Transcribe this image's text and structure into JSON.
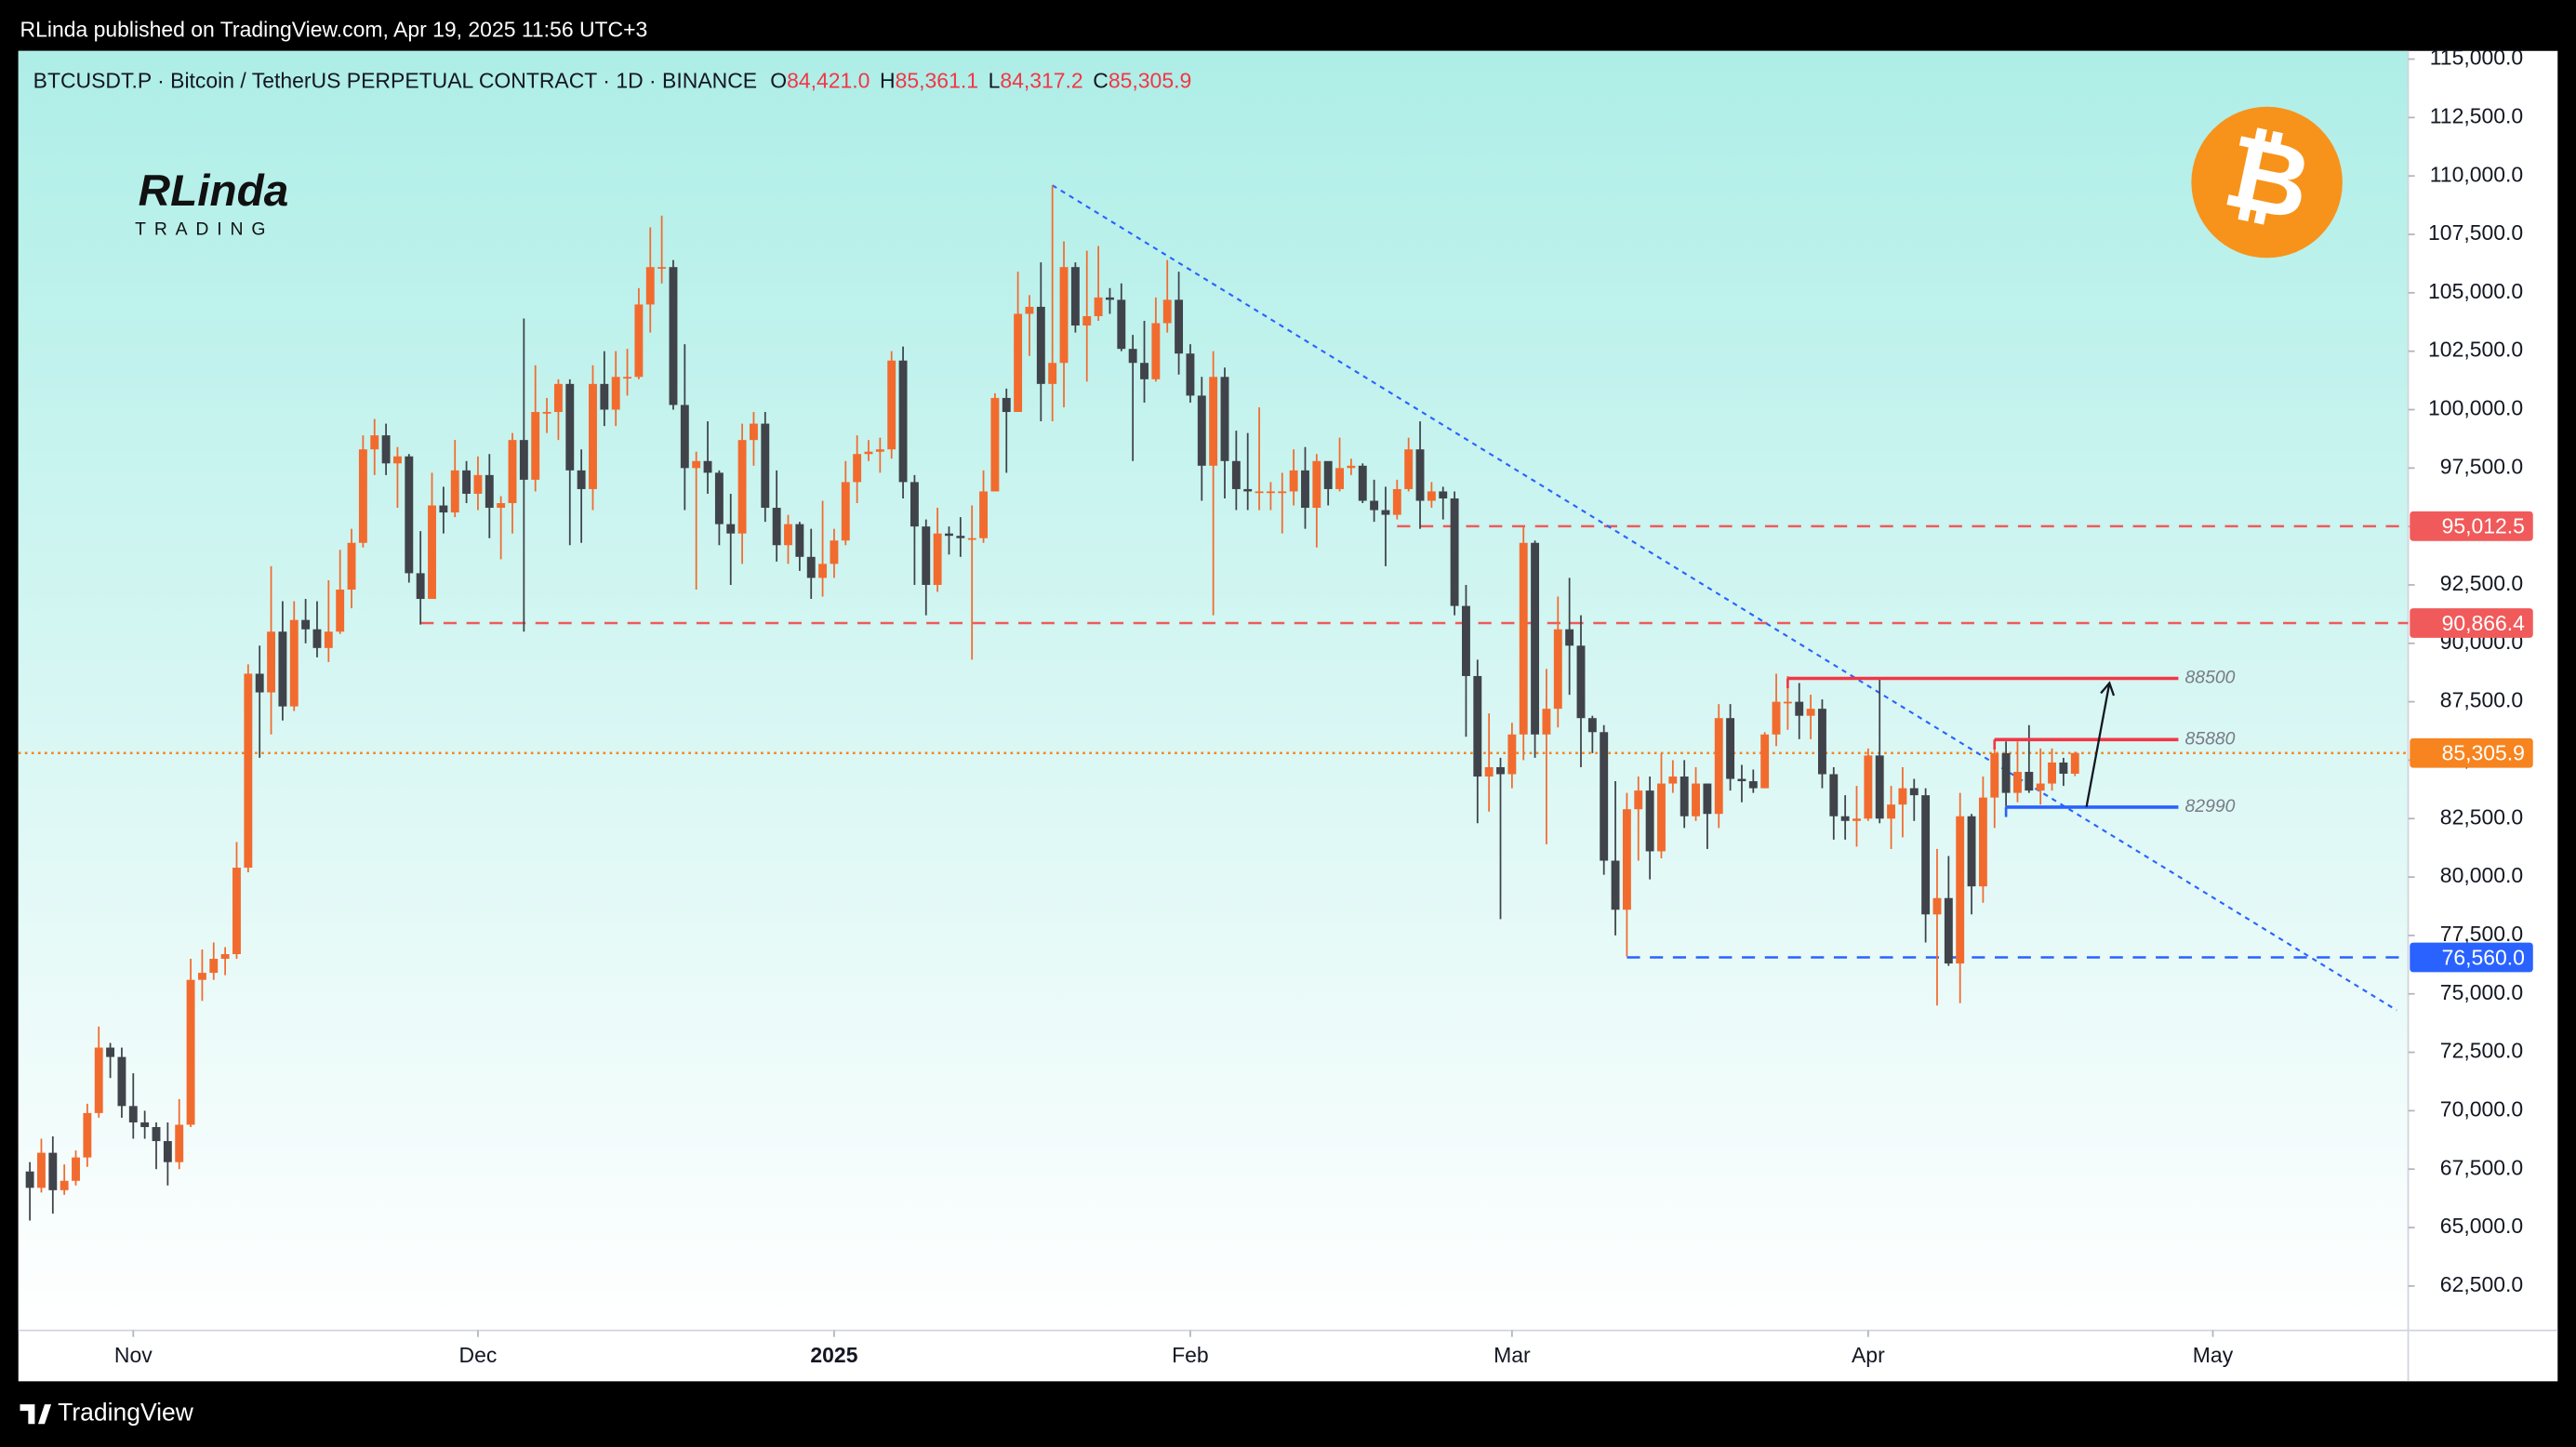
{
  "header": "RLinda published on TradingView.com, Apr 19, 2025 11:56 UTC+3",
  "footer": "TradingView",
  "logo": {
    "name": "RLinda",
    "tagline": "TRADING",
    "badge": "₿"
  },
  "chart_data": {
    "type": "candlestick",
    "legend": {
      "symbol": "BTCUSDT.P · Bitcoin / TetherUS PERPETUAL CONTRACT · 1D · BINANCE",
      "ohlc": [
        {
          "key": "O",
          "value": "84,421.0"
        },
        {
          "key": "H",
          "value": "85,361.1"
        },
        {
          "key": "L",
          "value": "84,317.2"
        },
        {
          "key": "C",
          "value": "85,305.9"
        }
      ]
    },
    "up_color": "#f26b2e",
    "down_color": "#40434a",
    "open": [
      67400,
      66700,
      68200,
      66600,
      67000,
      68000,
      69900,
      72700,
      72300,
      70200,
      69500,
      69300,
      68700,
      67800,
      69400,
      75600,
      75900,
      76500,
      76700,
      80400,
      88700,
      87900,
      90500,
      87300,
      91000,
      90600,
      89800,
      90500,
      92300,
      94300,
      98300,
      98900,
      97700,
      98000,
      93000,
      91900,
      95900,
      95600,
      97400,
      96400,
      97200,
      95800,
      96000,
      98700,
      97000,
      99900,
      99900,
      101100,
      97400,
      96600,
      101100,
      100000,
      101400,
      101400,
      104500,
      106100,
      106100,
      100200,
      97500,
      97800,
      97300,
      95100,
      94700,
      98700,
      99400,
      95800,
      94200,
      95100,
      93700,
      92800,
      93400,
      94400,
      96900,
      98100,
      98200,
      98300,
      102100,
      96900,
      95000,
      92500,
      94700,
      94600,
      94500,
      94500,
      96500,
      100500,
      99900,
      104100,
      104400,
      101100,
      102000,
      106100,
      103600,
      104000,
      104800,
      104700,
      102600,
      102000,
      101300,
      103700,
      104700,
      102400,
      100600,
      97600,
      101400,
      97800,
      96600,
      96500,
      96500,
      96500,
      96500,
      97400,
      95800,
      97800,
      96600,
      97500,
      97600,
      96100,
      95700,
      95500,
      96600,
      98300,
      96100,
      96500,
      96200,
      91600,
      88600,
      84300,
      84700,
      84400,
      86100,
      94300,
      86100,
      87200,
      90600,
      89900,
      86800,
      86200,
      80700,
      78600,
      82900,
      83700,
      81100,
      84000,
      84300,
      82600,
      84000,
      82700,
      86800,
      84200,
      84100,
      83800,
      86100,
      87500,
      87500,
      86900,
      87200,
      84400,
      82600,
      82400,
      82500,
      85200,
      82500,
      83100,
      83800,
      83500,
      78400,
      79100,
      76300,
      82600,
      79600,
      83400,
      85300,
      83600,
      84500,
      83700,
      84000,
      84900,
      84421
    ],
    "high": [
      67800,
      68800,
      68900,
      67700,
      68300,
      70300,
      73600,
      72900,
      72700,
      71600,
      70000,
      69500,
      69500,
      70500,
      76500,
      76900,
      77200,
      77000,
      81500,
      89100,
      89900,
      93300,
      91800,
      91800,
      91900,
      91800,
      92700,
      94000,
      94900,
      98900,
      99600,
      99400,
      98400,
      98100,
      94800,
      97300,
      96700,
      98700,
      97800,
      98000,
      98100,
      96300,
      99000,
      103900,
      101900,
      100500,
      101300,
      101300,
      98300,
      101900,
      102500,
      102500,
      102600,
      105200,
      107800,
      108300,
      106400,
      102800,
      98200,
      99500,
      97400,
      96400,
      99400,
      99900,
      99900,
      97400,
      95500,
      95200,
      94900,
      96100,
      94900,
      97800,
      98900,
      98700,
      98800,
      102500,
      102700,
      97200,
      95300,
      95800,
      95000,
      95400,
      95900,
      97400,
      100700,
      100900,
      105900,
      104900,
      106300,
      109600,
      107200,
      106300,
      106800,
      107000,
      105200,
      105400,
      103200,
      103800,
      104800,
      106400,
      105900,
      102800,
      101400,
      102500,
      101800,
      99100,
      99000,
      100100,
      96900,
      97300,
      98300,
      98400,
      98100,
      97700,
      98800,
      97900,
      97700,
      97000,
      96700,
      97000,
      98800,
      99500,
      96900,
      96700,
      96500,
      92500,
      89300,
      87000,
      85100,
      86600,
      95000,
      94400,
      88900,
      92000,
      92800,
      91200,
      86900,
      86500,
      84100,
      83600,
      84300,
      84300,
      85300,
      85000,
      85000,
      84700,
      84000,
      87400,
      87400,
      84800,
      84600,
      86200,
      88700,
      88600,
      88300,
      87800,
      87600,
      84700,
      83500,
      83900,
      85500,
      88500,
      83900,
      84700,
      84200,
      83800,
      81200,
      80900,
      83600,
      82700,
      84300,
      85900,
      85800,
      85800,
      86500,
      85500,
      85500,
      85100,
      85361.1
    ],
    "low": [
      65300,
      66500,
      65600,
      66400,
      66800,
      67600,
      69700,
      71400,
      69700,
      68800,
      68800,
      67500,
      66800,
      67500,
      69300,
      74700,
      75600,
      75800,
      76500,
      80200,
      85100,
      86100,
      86700,
      87100,
      90000,
      89400,
      89200,
      90400,
      91500,
      94100,
      97200,
      97200,
      95800,
      92600,
      90800,
      91900,
      94700,
      95400,
      96000,
      95700,
      94500,
      93600,
      94700,
      90500,
      96500,
      99000,
      98700,
      94200,
      94300,
      95700,
      99300,
      99300,
      100600,
      101300,
      103300,
      105400,
      100000,
      95700,
      92300,
      96400,
      94200,
      92500,
      93400,
      97600,
      95200,
      93500,
      93400,
      93100,
      91900,
      92000,
      92800,
      94200,
      96000,
      97800,
      97300,
      97900,
      96200,
      92500,
      91200,
      92200,
      93800,
      93700,
      89300,
      94300,
      96500,
      97300,
      99900,
      102300,
      99500,
      99500,
      100100,
      103300,
      101200,
      103800,
      104100,
      102500,
      97800,
      100300,
      101200,
      103300,
      101500,
      100300,
      96100,
      91200,
      96200,
      95700,
      95700,
      95700,
      95700,
      94700,
      95900,
      94900,
      94100,
      95900,
      96500,
      97200,
      96000,
      95200,
      93300,
      95300,
      96500,
      94900,
      95800,
      95300,
      91200,
      86000,
      82300,
      82800,
      78200,
      83800,
      85000,
      85100,
      81400,
      86400,
      87800,
      84700,
      85300,
      80100,
      77500,
      76600,
      80700,
      79900,
      80800,
      83600,
      82100,
      82400,
      81200,
      82100,
      83700,
      83200,
      83600,
      83800,
      85600,
      86300,
      85900,
      85900,
      83800,
      81600,
      81600,
      81300,
      82400,
      82300,
      81200,
      81700,
      82400,
      77200,
      74500,
      76200,
      74600,
      78400,
      78900,
      82100,
      83000,
      83200,
      83600,
      83100,
      83700,
      83900,
      84317.2
    ],
    "close": [
      66700,
      68200,
      66600,
      67000,
      68000,
      69900,
      72700,
      72300,
      70200,
      69500,
      69300,
      68700,
      67800,
      69400,
      75600,
      75900,
      76500,
      76700,
      80400,
      88700,
      87900,
      90500,
      87300,
      91000,
      90600,
      89800,
      90500,
      92300,
      94300,
      98300,
      98900,
      97700,
      98000,
      93000,
      91900,
      95900,
      95600,
      97400,
      96400,
      97200,
      95800,
      96000,
      98700,
      97000,
      99900,
      99900,
      101100,
      97400,
      96600,
      101100,
      100000,
      101400,
      101400,
      104500,
      106100,
      106100,
      100200,
      97500,
      97800,
      97300,
      95100,
      94700,
      98700,
      99400,
      95800,
      94200,
      95100,
      93700,
      92800,
      93400,
      94400,
      96900,
      98100,
      98200,
      98300,
      102100,
      96900,
      95000,
      92500,
      94700,
      94600,
      94500,
      94500,
      96500,
      100500,
      99900,
      104100,
      104400,
      101100,
      102000,
      106100,
      103600,
      104000,
      104800,
      104700,
      102600,
      102000,
      101300,
      103700,
      104700,
      102400,
      100600,
      97600,
      101400,
      97800,
      96600,
      96500,
      96500,
      96500,
      96500,
      97400,
      95800,
      97800,
      96600,
      97500,
      97600,
      96100,
      95700,
      95500,
      96600,
      98300,
      96100,
      96500,
      96200,
      91600,
      88600,
      84300,
      84700,
      84400,
      86100,
      94300,
      86100,
      87200,
      90600,
      89900,
      86800,
      86200,
      80700,
      78600,
      82900,
      83700,
      81100,
      84000,
      84300,
      82600,
      84000,
      82700,
      86800,
      84200,
      84100,
      83800,
      86100,
      87500,
      87500,
      86900,
      87200,
      84400,
      82600,
      82400,
      82500,
      85200,
      82500,
      83100,
      83800,
      83500,
      78400,
      79100,
      76300,
      82600,
      79600,
      83400,
      85300,
      83600,
      84500,
      83700,
      84000,
      84900,
      84421,
      85305.9
    ],
    "xlim": [
      -1,
      207
    ],
    "xticks": [
      {
        "value": 9,
        "label": "Nov"
      },
      {
        "value": 39,
        "label": "Dec"
      },
      {
        "value": 70,
        "label": "2025"
      },
      {
        "value": 101,
        "label": "Feb"
      },
      {
        "value": 129,
        "label": "Mar"
      },
      {
        "value": 160,
        "label": "Apr"
      },
      {
        "value": 190,
        "label": "May"
      }
    ],
    "ylim": [
      60600,
      115350
    ],
    "yticks": [
      {
        "value": 62500,
        "label": "62,500.0"
      },
      {
        "value": 65000,
        "label": "65,000.0"
      },
      {
        "value": 67500,
        "label": "67,500.0"
      },
      {
        "value": 70000,
        "label": "70,000.0"
      },
      {
        "value": 72500,
        "label": "72,500.0"
      },
      {
        "value": 75000,
        "label": "75,000.0"
      },
      {
        "value": 77500,
        "label": "77,500.0"
      },
      {
        "value": 80000,
        "label": "80,000.0"
      },
      {
        "value": 82500,
        "label": "82,500.0"
      },
      {
        "value": 85000,
        "label": "85,000.0"
      },
      {
        "value": 87500,
        "label": "87,500.0"
      },
      {
        "value": 90000,
        "label": "90,000.0"
      },
      {
        "value": 92500,
        "label": "92,500.0"
      },
      {
        "value": 95000,
        "label": "95,000.0"
      },
      {
        "value": 97500,
        "label": "97,500.0"
      },
      {
        "value": 100000,
        "label": "100,000.0"
      },
      {
        "value": 102500,
        "label": "102,500.0"
      },
      {
        "value": 105000,
        "label": "105,000.0"
      },
      {
        "value": 107500,
        "label": "107,500.0"
      },
      {
        "value": 110000,
        "label": "110,000.0"
      },
      {
        "value": 112500,
        "label": "112,500.0"
      },
      {
        "value": 115000,
        "label": "115,000.0"
      }
    ],
    "price_levels": [
      {
        "value": 95012.5,
        "label": "95,012.5",
        "color": "#f05a5a",
        "from": 119,
        "style": "dashed"
      },
      {
        "value": 90866.4,
        "label": "90,866.4",
        "color": "#f05a5a",
        "from": 34,
        "style": "dashed"
      },
      {
        "value": 85305.9,
        "label": "85,305.9",
        "color": "#f7841f",
        "from": -1,
        "style": "dotted"
      },
      {
        "value": 76560,
        "label": "76,560.0",
        "color": "#2962ff",
        "from": 139,
        "style": "dashed"
      }
    ],
    "segments": [
      {
        "value": 88500,
        "from": 153,
        "to": 187,
        "color": "#f23645"
      },
      {
        "value": 85880,
        "from": 171,
        "to": 187,
        "color": "#f23645"
      },
      {
        "value": 82990,
        "from": 172,
        "to": 187,
        "color": "#2962ff"
      }
    ],
    "trendline": {
      "x": [
        89,
        206
      ],
      "y": [
        109600,
        74300
      ],
      "color": "#2962ff"
    },
    "arrow": {
      "x": [
        179,
        181
      ],
      "y": [
        83000,
        88300
      ],
      "color": "#131722"
    }
  }
}
